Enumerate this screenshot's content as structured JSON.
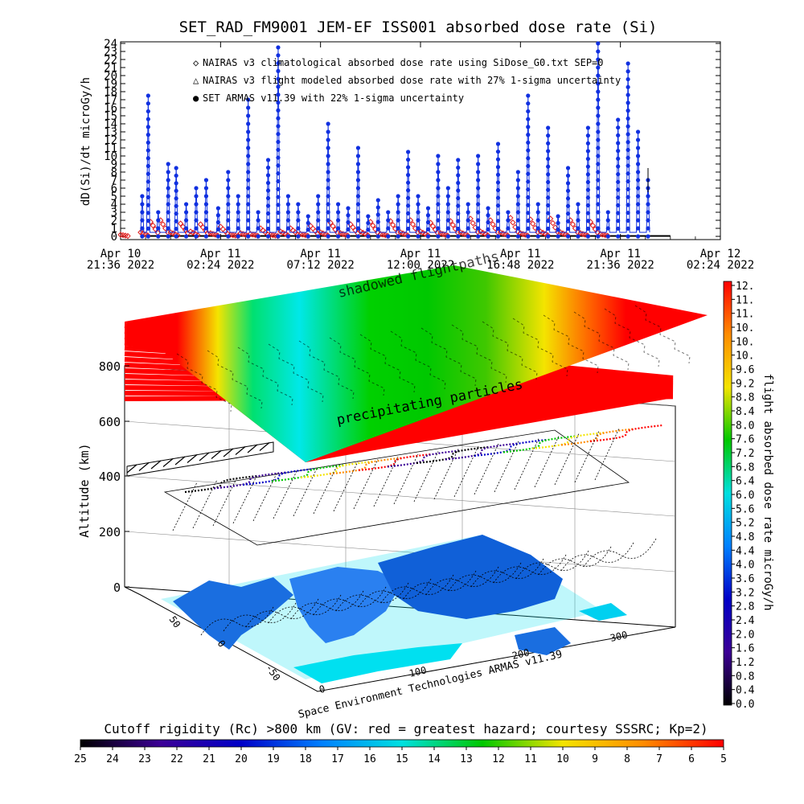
{
  "chart_data": [
    {
      "type": "scatter",
      "title": "SET_RAD_FM9001  JEM-EF ISS001 absorbed dose rate (Si)",
      "ylabel": "dD(Si)/dt microGy/h",
      "ylim": [
        0,
        24
      ],
      "y_ticks": [
        "0",
        "1",
        "2",
        "3",
        "4",
        "5",
        "6",
        "7",
        "8",
        "9",
        "10",
        "11",
        "12",
        "13",
        "14",
        "15",
        "16",
        "17",
        "18",
        "19",
        "20",
        "21",
        "22",
        "23",
        "24"
      ],
      "x_ticks": [
        {
          "line1": "Apr 10",
          "line2": "21:36 2022"
        },
        {
          "line1": "Apr 11",
          "line2": "02:24 2022"
        },
        {
          "line1": "Apr 11",
          "line2": "07:12 2022"
        },
        {
          "line1": "Apr 11",
          "line2": "12:00 2022"
        },
        {
          "line1": "Apr 11",
          "line2": "16:48 2022"
        },
        {
          "line1": "Apr 11",
          "line2": "21:36 2022"
        },
        {
          "line1": "Apr 12",
          "line2": "02:24 2022"
        }
      ],
      "legend": [
        {
          "symbol": "◇",
          "color": "#e02020",
          "label": "NAIRAS v3 climatological absorbed dose rate using SiDose_G0.txt SEP=0"
        },
        {
          "symbol": "△",
          "color": "#000000",
          "label": "NAIRAS v3 flight modeled absorbed dose rate with 27% 1-sigma uncertainty"
        },
        {
          "symbol": "●",
          "color": "#1030e0",
          "label": "SET ARMAS v11.39 with 22% 1-sigma uncertainty"
        }
      ],
      "series": [
        {
          "name": "NAIRAS v3 climatological absorbed dose rate using SiDose_G0.txt SEP=0",
          "color": "#e02020",
          "x_hours": [
            0.0,
            1.0,
            1.5,
            2.0,
            2.5,
            3.0,
            3.5,
            4.0,
            4.5,
            5.0,
            5.5,
            6.0,
            6.5,
            7.0,
            7.5,
            8.0,
            8.5,
            9.0,
            9.5,
            10.0,
            10.5,
            11.0,
            11.5,
            12.0,
            12.5,
            13.0,
            13.5,
            14.0,
            14.5,
            15.0,
            15.5,
            16.0,
            16.5,
            17.0,
            17.5,
            18.0,
            18.5,
            19.0,
            19.5,
            20.0,
            20.5,
            21.0,
            21.5,
            22.0,
            22.5,
            23.0,
            23.5,
            24.0
          ],
          "values": [
            0.2,
            0.5,
            1.8,
            2.0,
            0.5,
            1.6,
            0.6,
            1.5,
            0.4,
            1.2,
            0.2,
            0.4,
            0.3,
            1.0,
            0.2,
            0.6,
            1.0,
            0.3,
            1.3,
            0.5,
            1.7,
            0.4,
            1.5,
            0.6,
            1.8,
            0.3,
            1.9,
            0.5,
            2.0,
            0.6,
            1.7,
            0.4,
            1.9,
            0.5,
            2.2,
            0.6,
            2.0,
            0.5,
            2.3,
            0.4,
            2.1,
            0.6,
            2.2,
            0.5,
            2.0,
            0.4,
            1.8,
            0.3
          ]
        },
        {
          "name": "SET ARMAS v11.39 with 22% 1-sigma uncertainty",
          "color": "#1030e0",
          "x_hours": [
            1.0,
            1.3,
            1.8,
            2.3,
            2.7,
            3.2,
            3.7,
            4.2,
            4.8,
            5.3,
            5.8,
            6.3,
            6.8,
            7.3,
            7.8,
            8.3,
            8.8,
            9.3,
            9.8,
            10.3,
            10.8,
            11.3,
            11.8,
            12.3,
            12.8,
            13.3,
            13.8,
            14.3,
            14.8,
            15.3,
            15.8,
            16.3,
            16.8,
            17.3,
            17.8,
            18.3,
            18.8,
            19.3,
            19.8,
            20.3,
            20.8,
            21.3,
            21.8,
            22.3,
            22.8,
            23.3,
            23.8,
            24.3,
            24.8,
            25.3,
            25.8,
            26.3
          ],
          "values": [
            5.0,
            17.5,
            3.0,
            9.0,
            8.5,
            4.0,
            6.0,
            7.0,
            3.5,
            8.0,
            5.0,
            17.0,
            3.0,
            9.5,
            23.5,
            5.0,
            4.0,
            2.5,
            5.0,
            14.0,
            4.0,
            3.5,
            11.0,
            2.5,
            4.5,
            3.0,
            5.0,
            10.5,
            5.0,
            3.5,
            10.0,
            6.0,
            9.5,
            4.0,
            10.0,
            3.5,
            11.5,
            3.0,
            8.0,
            17.5,
            4.0,
            13.5,
            2.5,
            8.5,
            4.0,
            13.5,
            24.0,
            3.0,
            14.5,
            21.5,
            13.0,
            7.0
          ]
        }
      ]
    },
    {
      "type": "surface",
      "zlabel": "Altitude (km)",
      "z_ticks": [
        "0",
        "200",
        "400",
        "600",
        "800"
      ],
      "lat_ticks": [
        "-50",
        "0",
        "50"
      ],
      "lon_ticks": [
        "0",
        "100",
        "200",
        "300"
      ],
      "annotations": [
        "shadowed flightpaths",
        "precipitating particles"
      ],
      "credit": "Space Environment Technologies ARMAS v11.39"
    },
    {
      "type": "colorbar",
      "orientation": "vertical",
      "label": "flight absorbed dose rate microGy/h",
      "tick_labels": [
        "12.",
        "11.",
        "11.",
        "10.",
        "10.",
        "10.",
        "9.6",
        "9.2",
        "8.8",
        "8.4",
        "8.0",
        "7.6",
        "7.2",
        "6.8",
        "6.4",
        "6.0",
        "5.6",
        "5.2",
        "4.8",
        "4.4",
        "4.0",
        "3.6",
        "3.2",
        "2.8",
        "2.4",
        "2.0",
        "1.6",
        "1.2",
        "0.8",
        "0.4",
        "0.0"
      ],
      "colors": [
        "#ff0000",
        "#ff8c00",
        "#f4e400",
        "#00c800",
        "#00e0e0",
        "#0080ff",
        "#0000c8",
        "#3c0096",
        "#000000"
      ]
    },
    {
      "type": "colorbar",
      "orientation": "horizontal",
      "title": "Cutoff rigidity (Rc) >800 km (GV: red = greatest hazard; courtesy SSSRC; Kp=2)",
      "tick_labels": [
        "25",
        "24",
        "23",
        "22",
        "21",
        "20",
        "19",
        "18",
        "17",
        "16",
        "15",
        "14",
        "13",
        "12",
        "11",
        "10",
        "9",
        "8",
        "7",
        "6",
        "5"
      ],
      "colors": [
        "#000000",
        "#3c0096",
        "#0000c8",
        "#0080ff",
        "#00e0e0",
        "#00c800",
        "#f4e400",
        "#ff8c00",
        "#ff0000"
      ]
    }
  ]
}
